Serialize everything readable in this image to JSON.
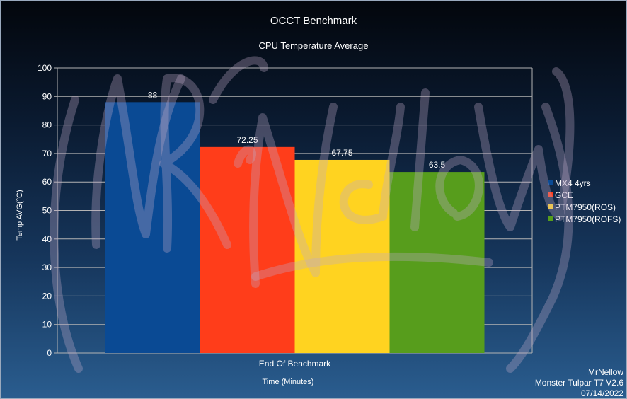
{
  "chart_data": {
    "type": "bar",
    "title": "OCCT Benchmark",
    "subtitle": "CPU Temperature Average",
    "ylabel": "Temp AVG(°C)",
    "xlabel": "Time (Minutes)",
    "categories": [
      "End Of Benchmark"
    ],
    "series": [
      {
        "name": "MX4 4yrs",
        "values": [
          88
        ],
        "color": "#0a4a94"
      },
      {
        "name": "GCE",
        "values": [
          72.25
        ],
        "color": "#ff3d1a"
      },
      {
        "name": "PTM7950(ROS)",
        "values": [
          67.75
        ],
        "color": "#ffd320"
      },
      {
        "name": "PTM7950(ROFS)",
        "values": [
          63.5
        ],
        "color": "#579d1c"
      }
    ],
    "ylim": [
      0,
      100
    ],
    "yticks": [
      0,
      10,
      20,
      30,
      40,
      50,
      60,
      70,
      80,
      90,
      100
    ],
    "grid": true,
    "legend_position": "right"
  },
  "credits": {
    "line1": "MrNellow",
    "line2": "Monster Tulpar T7 V2.6",
    "line3": "07/14/2022"
  },
  "watermark_text": "MrNellow"
}
